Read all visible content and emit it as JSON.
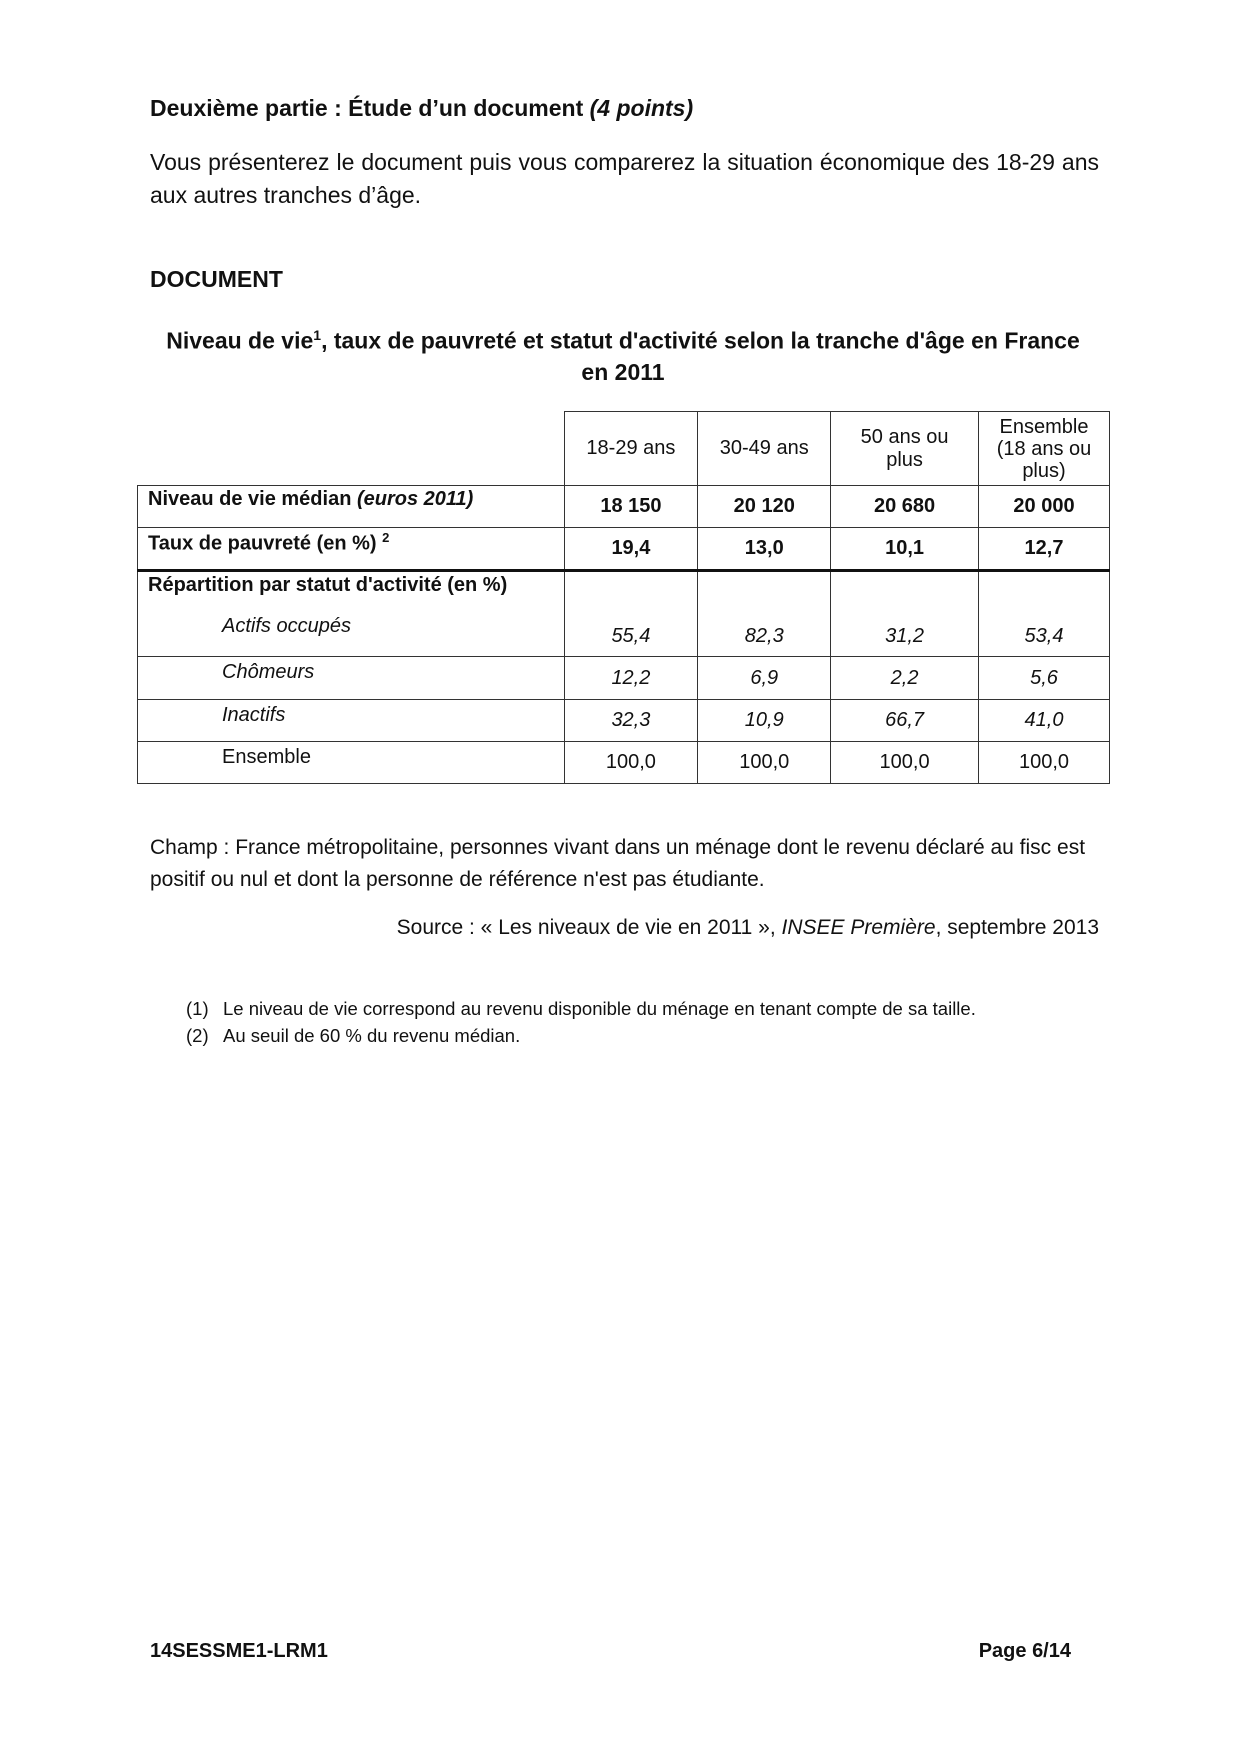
{
  "heading": {
    "main": "Deuxième partie : Étude d’un document",
    "points": "(4 points)"
  },
  "instruction": "Vous présenterez le document puis vous comparerez la situation économique des 18-29 ans aux autres tranches d’âge.",
  "document_label": "DOCUMENT",
  "table_title": {
    "before": "Niveau de vie",
    "sup": "1",
    "after": ", taux de pauvreté et statut d'activité selon la tranche d'âge en France en 2011"
  },
  "table": {
    "columns": [
      "18-29 ans",
      "30-49 ans",
      "50 ans ou plus",
      "Ensemble (18 ans ou plus)"
    ],
    "niveau": {
      "label": "Niveau de vie médian",
      "unit": "(euros 2011)",
      "values": [
        "18 150",
        "20 120",
        "20 680",
        "20 000"
      ]
    },
    "pauvrete": {
      "label": "Taux de pauvreté (en %)",
      "sup": "2",
      "values": [
        "19,4",
        "13,0",
        "10,1",
        "12,7"
      ]
    },
    "repartition_label": "Répartition par statut d'activité (en %)",
    "rows": [
      {
        "label": "Actifs occupés",
        "values": [
          "55,4",
          "82,3",
          "31,2",
          "53,4"
        ]
      },
      {
        "label": "Chômeurs",
        "values": [
          "12,2",
          "6,9",
          "2,2",
          "5,6"
        ]
      },
      {
        "label": "Inactifs",
        "values": [
          "32,3",
          "10,9",
          "66,7",
          "41,0"
        ]
      },
      {
        "label": "Ensemble",
        "values": [
          "100,0",
          "100,0",
          "100,0",
          "100,0"
        ]
      }
    ]
  },
  "champ": "Champ : France métropolitaine, personnes vivant dans un ménage dont le revenu déclaré au fisc est positif ou nul et dont la personne de référence n'est pas étudiante.",
  "source": {
    "before": "Source : « Les niveaux de vie en 2011 », ",
    "publication": "INSEE Première",
    "after": ", septembre 2013"
  },
  "footnotes": [
    {
      "num": "(1)",
      "text": "Le niveau de vie correspond au revenu disponible du ménage en tenant compte de sa taille."
    },
    {
      "num": "(2)",
      "text": "Au seuil de 60 % du revenu médian."
    }
  ],
  "footer": {
    "code": "14SESSME1-LRM1",
    "page": "Page 6/14"
  }
}
